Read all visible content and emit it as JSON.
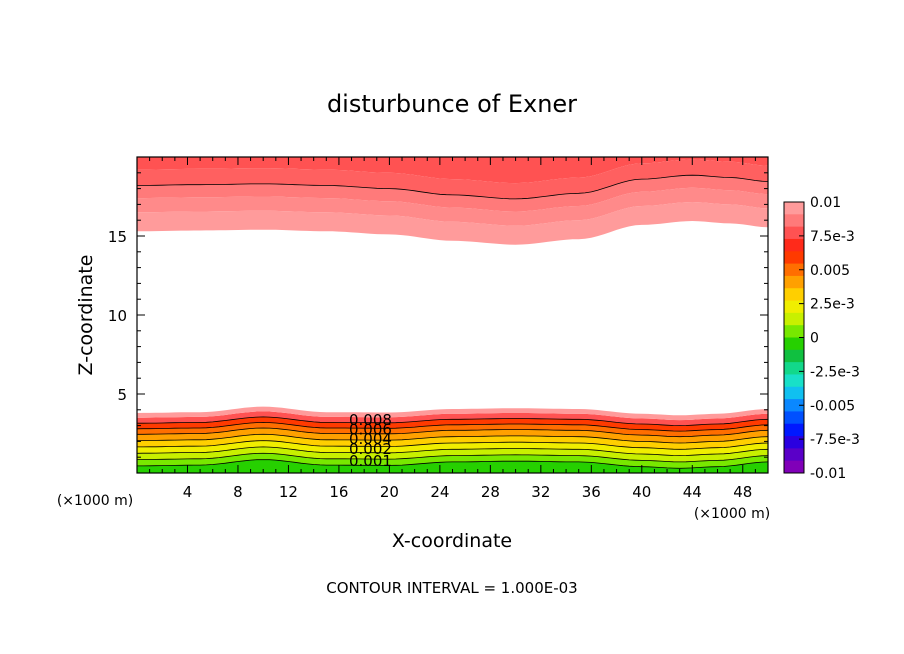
{
  "chart_data": {
    "type": "contour",
    "title": "disturbunce of Exner",
    "xlabel": "X-coordinate",
    "ylabel": "Z-coordinate",
    "x_unit_label_left": "(×1000 m)",
    "x_unit_label_right": "(×1000 m)",
    "footer": "CONTOUR INTERVAL = 1.000E-03",
    "xlim": [
      0,
      50
    ],
    "ylim": [
      0,
      20
    ],
    "x_ticks": [
      4,
      8,
      12,
      16,
      20,
      24,
      28,
      32,
      36,
      40,
      44,
      48
    ],
    "x_tick_labels": [
      "4",
      "8",
      "12",
      "16",
      "20",
      "24",
      "28",
      "32",
      "36",
      "40",
      "44",
      "48"
    ],
    "y_ticks": [
      5,
      10,
      15
    ],
    "y_tick_labels": [
      "5",
      "10",
      "15"
    ],
    "contour_interval": 0.001,
    "contour_labels": [
      "0.008",
      "0.006",
      "0.004",
      "0.002",
      "0.001"
    ],
    "colorbar": {
      "ticks": [
        "0.01",
        "7.5e-3",
        "0.005",
        "2.5e-3",
        "0",
        "-2.5e-3",
        "-0.005",
        "-7.5e-3",
        "-0.01"
      ],
      "colors": [
        "#ff9b9b",
        "#ff7a7a",
        "#ff5252",
        "#ff2a1a",
        "#ff3a00",
        "#ff6e00",
        "#ffa000",
        "#ffcf00",
        "#f0ee00",
        "#c8f000",
        "#78e800",
        "#26d000",
        "#10c040",
        "#12d88a",
        "#18e0c8",
        "#10c0f0",
        "#0a88ff",
        "#0050ff",
        "#0018ff",
        "#2a00e0",
        "#5a00c8",
        "#8000b8"
      ]
    },
    "lower_bands": {
      "x_nodes": [
        0,
        5,
        10,
        15,
        20,
        25,
        30,
        35,
        40,
        43,
        46,
        50
      ],
      "offset_profile": [
        -0.15,
        -0.1,
        0.25,
        -0.1,
        -0.12,
        0.1,
        0.15,
        0.1,
        -0.2,
        -0.3,
        -0.2,
        0.1
      ],
      "levels": [
        0.6,
        1.0,
        1.4,
        1.8,
        2.2,
        2.6,
        2.95,
        3.3,
        3.65,
        3.95
      ],
      "colors": [
        "#26d000",
        "#78e800",
        "#c8f000",
        "#f0ee00",
        "#ffcf00",
        "#ffa000",
        "#ff6e00",
        "#ff3a00",
        "#ff5252",
        "#ff9b9b"
      ],
      "line_levels": [
        0.6,
        1.0,
        1.4,
        1.8,
        2.2,
        2.6,
        2.95,
        3.3
      ]
    },
    "upper_bands": {
      "x_nodes": [
        0,
        5,
        10,
        15,
        20,
        25,
        30,
        35,
        40,
        44,
        47,
        50
      ],
      "offset_profile": [
        0,
        0.05,
        0.1,
        0,
        -0.2,
        -0.6,
        -0.85,
        -0.5,
        0.4,
        0.65,
        0.5,
        0.25
      ],
      "levels": [
        15.3,
        16.5,
        17.4,
        18.2,
        19.2
      ],
      "colors": [
        "#ff9b9b",
        "#ff8a8a",
        "#ff7a7a",
        "#ff6060",
        "#ff5252"
      ],
      "line_levels": [
        18.2
      ]
    }
  }
}
